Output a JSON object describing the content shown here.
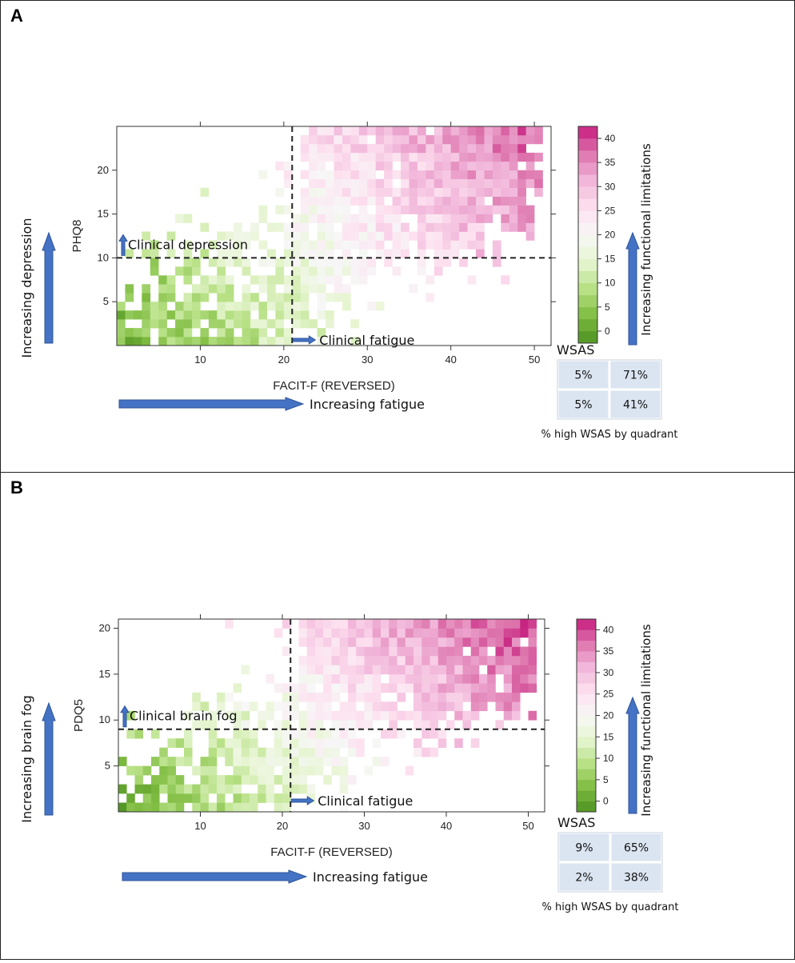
{
  "colors": {
    "arrow": "#4472c4",
    "arrow_stroke": "#2f5597",
    "table_fill": "#dbe5f1",
    "scale": [
      "#4d9221",
      "#7fbc41",
      "#b8e186",
      "#e6f5d0",
      "#f7f7f7",
      "#fde0ef",
      "#f1b6da",
      "#de77ae",
      "#c51b7d"
    ]
  },
  "panels": [
    {
      "letter": "A",
      "xlabel": "FACIT-F (REVERSED)",
      "ylabel": "PHQ8",
      "y_annot": "Increasing depression",
      "x_annot": "Increasing fatigue",
      "clin_y_label": "Clinical depression",
      "clin_x_label": "Clinical fatigue",
      "cbar_annot": "Increasing functional limitations",
      "wsas_title": "WSAS",
      "wsas_caption": "% high WSAS by quadrant",
      "wsas": [
        [
          "5%",
          "71%"
        ],
        [
          "5%",
          "41%"
        ]
      ]
    },
    {
      "letter": "B",
      "xlabel": "FACIT-F (REVERSED)",
      "ylabel": "PDQ5",
      "y_annot": "Increasing brain fog",
      "x_annot": "Increasing fatigue",
      "clin_y_label": "Clinical brain fog",
      "clin_x_label": "Clinical fatigue",
      "cbar_annot": "Increasing functional limitations",
      "wsas_title": "WSAS",
      "wsas_caption": "% high WSAS by quadrant",
      "wsas": [
        [
          "9%",
          "65%"
        ],
        [
          "2%",
          "38%"
        ]
      ]
    }
  ],
  "chart_data": [
    {
      "type": "heatmap",
      "panel": "A",
      "xlabel": "FACIT-F (REVERSED)",
      "ylabel": "PHQ8",
      "xlim": [
        0,
        52
      ],
      "ylim": [
        0,
        25
      ],
      "xticks": [
        10,
        20,
        30,
        40,
        50
      ],
      "yticks": [
        5,
        10,
        15,
        20
      ],
      "ycells": 25,
      "threshold_x": 21,
      "threshold_y": 10,
      "colorbar": {
        "label": "WSAS",
        "min": -2.5,
        "max": 42.5,
        "ticks": [
          0,
          5,
          10,
          15,
          20,
          25,
          30,
          35,
          40
        ]
      },
      "value": "mean WSAS per (FACIT-F, PHQ8) cell; approx. 1.5 + 0.5*fatigue + 0.45*depression",
      "seed": 7
    },
    {
      "type": "heatmap",
      "panel": "B",
      "xlabel": "FACIT-F (REVERSED)",
      "ylabel": "PDQ5",
      "xlim": [
        0,
        52
      ],
      "ylim": [
        0,
        21
      ],
      "xticks": [
        10,
        20,
        30,
        40,
        50
      ],
      "yticks": [
        5,
        10,
        15,
        20
      ],
      "ycells": 21,
      "threshold_x": 21,
      "threshold_y": 9,
      "colorbar": {
        "label": "WSAS",
        "min": -2.5,
        "max": 42.5,
        "ticks": [
          0,
          5,
          10,
          15,
          20,
          25,
          30,
          35,
          40
        ]
      },
      "value": "mean WSAS per (FACIT-F, PDQ5) cell; approx. 1.0 + 0.52*fatigue + 0.55*brain fog",
      "seed": 19
    }
  ]
}
